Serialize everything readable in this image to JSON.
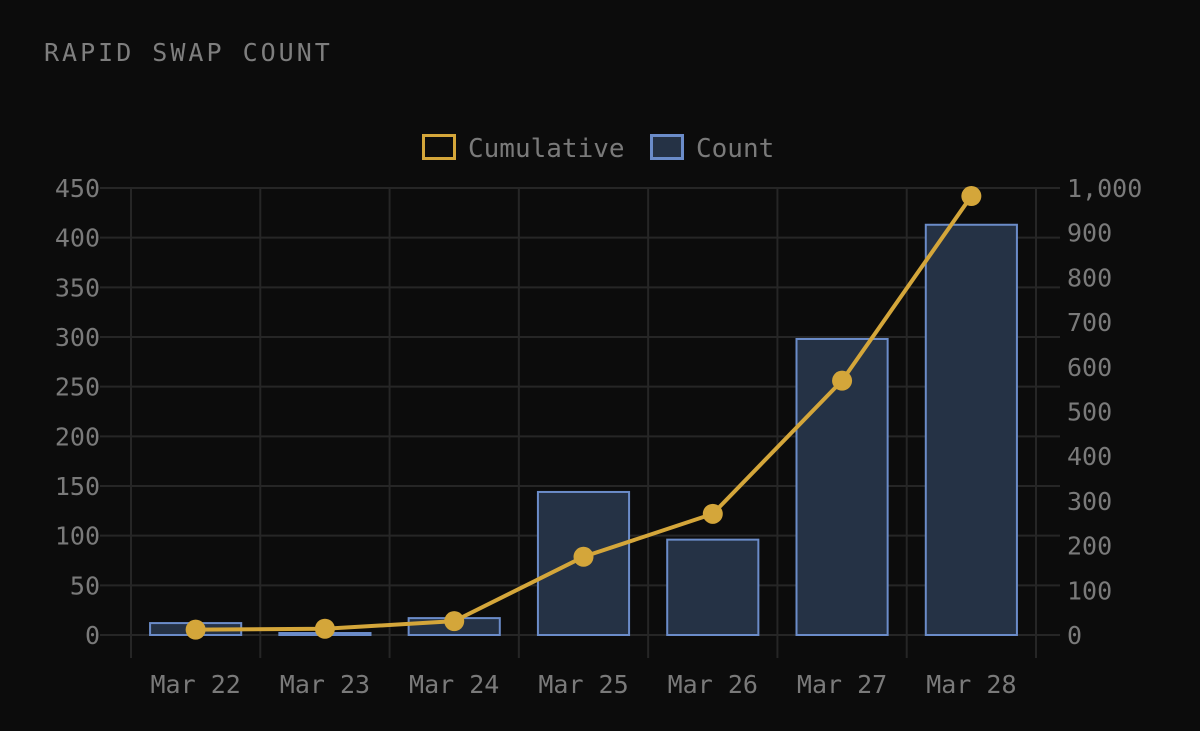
{
  "title": "RAPID SWAP COUNT",
  "chart_data": {
    "type": "bar",
    "categories": [
      "Mar 22",
      "Mar 23",
      "Mar 24",
      "Mar 25",
      "Mar 26",
      "Mar 27",
      "Mar 28"
    ],
    "series": [
      {
        "name": "Count",
        "type": "bar",
        "axis": "left",
        "values": [
          12,
          2,
          17,
          144,
          96,
          298,
          413
        ]
      },
      {
        "name": "Cumulative",
        "type": "line",
        "axis": "right",
        "values": [
          12,
          14,
          31,
          175,
          271,
          569,
          982
        ]
      }
    ],
    "y_left": {
      "min": 0,
      "max": 450,
      "ticks": [
        "0",
        "50",
        "100",
        "150",
        "200",
        "250",
        "300",
        "350",
        "400",
        "450"
      ]
    },
    "y_right": {
      "min": 0,
      "max": 1000,
      "ticks": [
        "0",
        "100",
        "200",
        "300",
        "400",
        "500",
        "600",
        "700",
        "800",
        "900",
        "1,000"
      ]
    },
    "legend": {
      "position": "top-center",
      "items": [
        "Cumulative",
        "Count"
      ]
    },
    "grid": true,
    "colors": {
      "line": "#d4a63a",
      "bar_fill": "#253245",
      "bar_stroke": "#6b8cc9",
      "grid": "#262626",
      "text": "#7a7a7a",
      "background": "#0c0c0c"
    }
  }
}
